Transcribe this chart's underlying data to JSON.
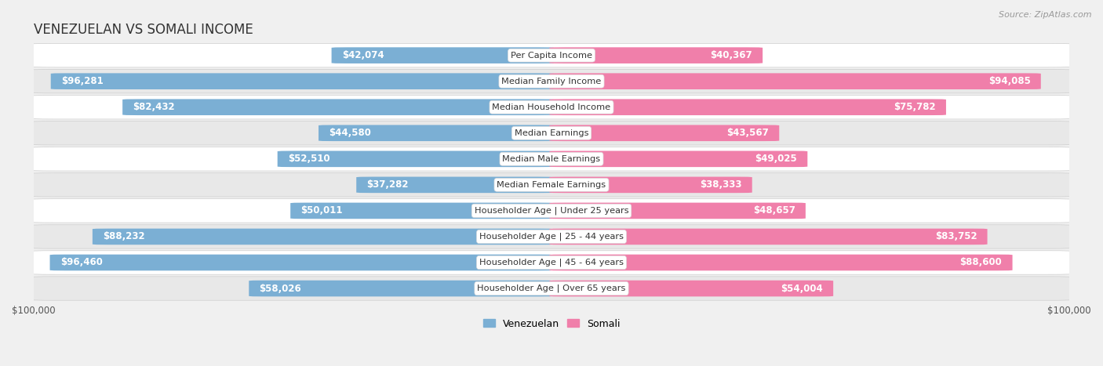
{
  "title": "VENEZUELAN VS SOMALI INCOME",
  "source": "Source: ZipAtlas.com",
  "categories": [
    "Per Capita Income",
    "Median Family Income",
    "Median Household Income",
    "Median Earnings",
    "Median Male Earnings",
    "Median Female Earnings",
    "Householder Age | Under 25 years",
    "Householder Age | 25 - 44 years",
    "Householder Age | 45 - 64 years",
    "Householder Age | Over 65 years"
  ],
  "venezuelan_values": [
    42074,
    96281,
    82432,
    44580,
    52510,
    37282,
    50011,
    88232,
    96460,
    58026
  ],
  "somali_values": [
    40367,
    94085,
    75782,
    43567,
    49025,
    38333,
    48657,
    83752,
    88600,
    54004
  ],
  "venezuelan_labels": [
    "$42,074",
    "$96,281",
    "$82,432",
    "$44,580",
    "$52,510",
    "$37,282",
    "$50,011",
    "$88,232",
    "$96,460",
    "$58,026"
  ],
  "somali_labels": [
    "$40,367",
    "$94,085",
    "$75,782",
    "$43,567",
    "$49,025",
    "$38,333",
    "$48,657",
    "$83,752",
    "$88,600",
    "$54,004"
  ],
  "venezuelan_color": "#7bafd4",
  "somali_color": "#f07faa",
  "max_value": 100000,
  "bar_height": 0.62,
  "bg_color": "#f0f0f0",
  "row_bg_even": "#ffffff",
  "row_bg_odd": "#e8e8e8",
  "row_shadow": "#cccccc",
  "title_fontsize": 12,
  "label_fontsize": 8.5,
  "category_fontsize": 8.2,
  "axis_label_fontsize": 8.5,
  "inside_threshold": 0.18
}
